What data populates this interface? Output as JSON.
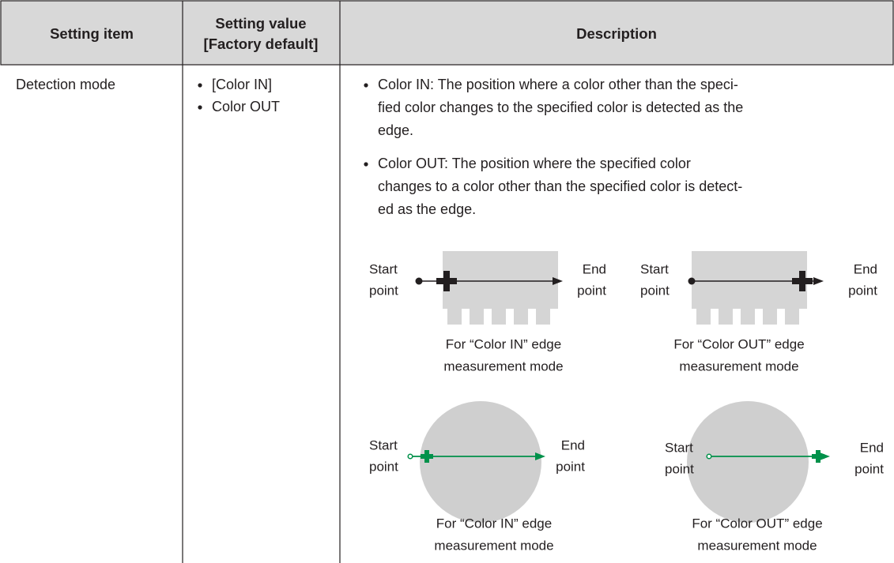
{
  "table": {
    "header": [
      [
        "Setting item"
      ],
      [
        "Setting value",
        "[Factory default]"
      ],
      [
        "Description"
      ]
    ],
    "rows": [
      {
        "item": "Detection mode",
        "values": [
          "[Color IN]",
          "Color OUT"
        ],
        "description": [
          [
            "Color IN: The position where a color other than the speci-",
            "fied color changes to the specified color is detected as the",
            "edge."
          ],
          [
            "Color OUT: The position where the specified color",
            "changes to a color other than the specified color is detect-",
            "ed as the edge."
          ]
        ],
        "figures": [
          {
            "start": [
              "Start",
              "point"
            ],
            "end": [
              "End",
              "point"
            ],
            "caption": [
              "For “Color IN” edge",
              "measurement mode"
            ]
          },
          {
            "start": [
              "Start",
              "point"
            ],
            "end": [
              "End",
              "point"
            ],
            "caption": [
              "For “Color OUT” edge",
              "measurement mode"
            ]
          },
          {
            "start": [
              "Start",
              "point"
            ],
            "end": [
              "End",
              "point"
            ],
            "caption": [
              "For “Color IN” edge",
              "measurement mode"
            ]
          },
          {
            "start": [
              "Start",
              "point"
            ],
            "end": [
              "End",
              "point"
            ],
            "caption": [
              "For “Color OUT” edge",
              "measurement mode"
            ]
          }
        ]
      }
    ]
  }
}
